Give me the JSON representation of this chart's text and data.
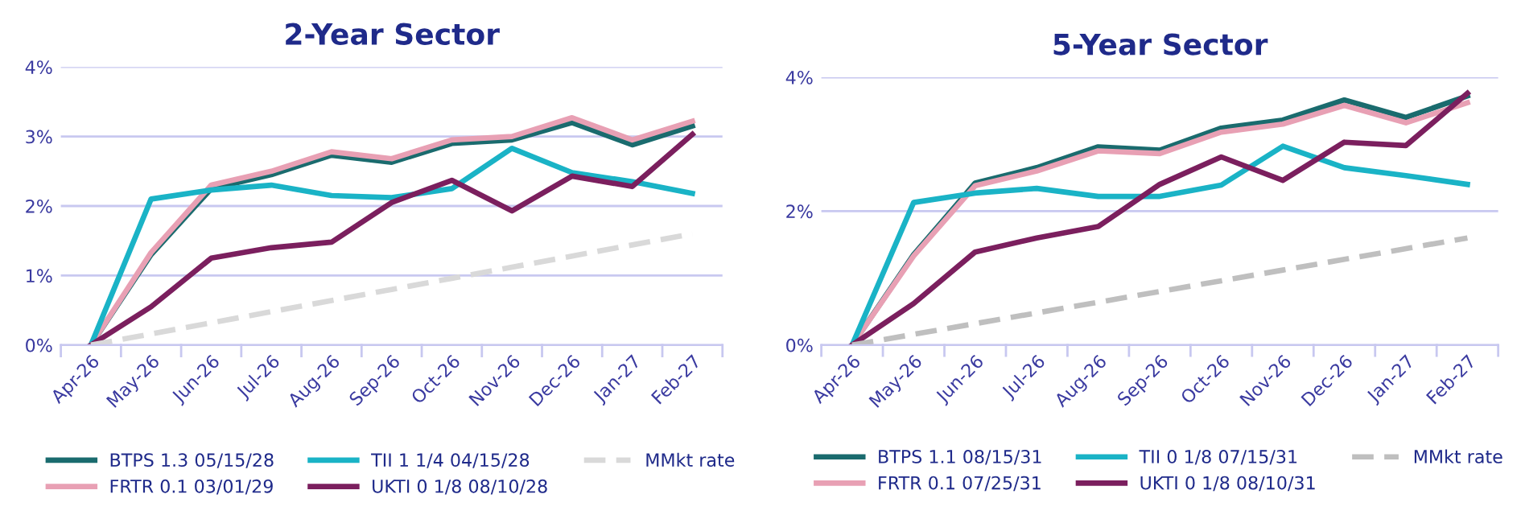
{
  "chart_data": [
    {
      "type": "line",
      "title": "2-Year Sector",
      "categories": [
        "Apr-26",
        "May-26",
        "Jun-26",
        "Jul-26",
        "Aug-26",
        "Sep-26",
        "Oct-26",
        "Nov-26",
        "Dec-26",
        "Jan-27",
        "Feb-27"
      ],
      "ylim": [
        0,
        4
      ],
      "yticks": [
        {
          "value": 0,
          "label": "0%"
        },
        {
          "value": 1,
          "label": "1%"
        },
        {
          "value": 2,
          "label": "2%"
        },
        {
          "value": 3,
          "label": "3%"
        },
        {
          "value": 4,
          "label": "4%"
        }
      ],
      "grid": "y",
      "legend": "bottom",
      "marker": "none",
      "series": [
        {
          "name": "BTPS 1.3 05/15/28",
          "color": "#1a6b6e",
          "values": [
            0,
            1.3,
            2.25,
            2.45,
            2.73,
            2.63,
            2.9,
            2.95,
            3.2,
            2.88,
            3.15
          ]
        },
        {
          "name": "FRTR 0.1 03/01/29",
          "color": "#e8a0b4",
          "values": [
            0,
            1.33,
            2.3,
            2.5,
            2.78,
            2.68,
            2.95,
            3.0,
            3.27,
            2.95,
            3.22
          ]
        },
        {
          "name": "TII 1 1/4 04/15/28",
          "color": "#1ab3c6",
          "values": [
            0,
            2.1,
            2.23,
            2.3,
            2.15,
            2.12,
            2.25,
            2.83,
            2.48,
            2.35,
            2.18
          ]
        },
        {
          "name": "UKTI 0 1/8 08/10/28",
          "color": "#7b1f5e",
          "values": [
            0,
            0.55,
            1.25,
            1.4,
            1.48,
            2.05,
            2.37,
            1.93,
            2.43,
            2.28,
            3.03
          ]
        },
        {
          "name": "MMkt rate",
          "color": "#d9d9d9",
          "line_style": "dashed",
          "values": [
            0,
            0.16,
            0.32,
            0.48,
            0.64,
            0.8,
            0.96,
            1.12,
            1.28,
            1.44,
            1.6
          ]
        }
      ]
    },
    {
      "type": "line",
      "title": "5-Year Sector",
      "categories": [
        "Apr-26",
        "May-26",
        "Jun-26",
        "Jul-26",
        "Aug-26",
        "Sep-26",
        "Oct-26",
        "Nov-26",
        "Dec-26",
        "Jan-27",
        "Feb-27"
      ],
      "ylim": [
        0,
        4
      ],
      "yticks": [
        {
          "value": 0,
          "label": "0%"
        },
        {
          "value": 2,
          "label": "2%"
        },
        {
          "value": 4,
          "label": "4%"
        }
      ],
      "grid": "y",
      "legend": "bottom",
      "marker": "none",
      "series": [
        {
          "name": "BTPS 1.1 08/15/31",
          "color": "#1a6b6e",
          "values": [
            0,
            1.35,
            2.42,
            2.65,
            2.96,
            2.91,
            3.24,
            3.36,
            3.66,
            3.4,
            3.72
          ]
        },
        {
          "name": "FRTR 0.1 07/25/31",
          "color": "#e8a0b4",
          "values": [
            0,
            1.33,
            2.38,
            2.6,
            2.9,
            2.86,
            3.18,
            3.3,
            3.58,
            3.32,
            3.62
          ]
        },
        {
          "name": "TII 0 1/8 07/15/31",
          "color": "#1ab3c6",
          "values": [
            0,
            2.13,
            2.27,
            2.34,
            2.22,
            2.22,
            2.39,
            2.97,
            2.65,
            2.53,
            2.4
          ]
        },
        {
          "name": "UKTI 0 1/8 08/10/31",
          "color": "#7b1f5e",
          "values": [
            0,
            0.62,
            1.39,
            1.6,
            1.77,
            2.4,
            2.81,
            2.46,
            3.03,
            2.98,
            3.76
          ]
        },
        {
          "name": "MMkt rate",
          "color": "#bfbfbf",
          "line_style": "dashed",
          "values": [
            0,
            0.16,
            0.32,
            0.48,
            0.64,
            0.8,
            0.96,
            1.12,
            1.28,
            1.44,
            1.6
          ]
        }
      ]
    }
  ]
}
